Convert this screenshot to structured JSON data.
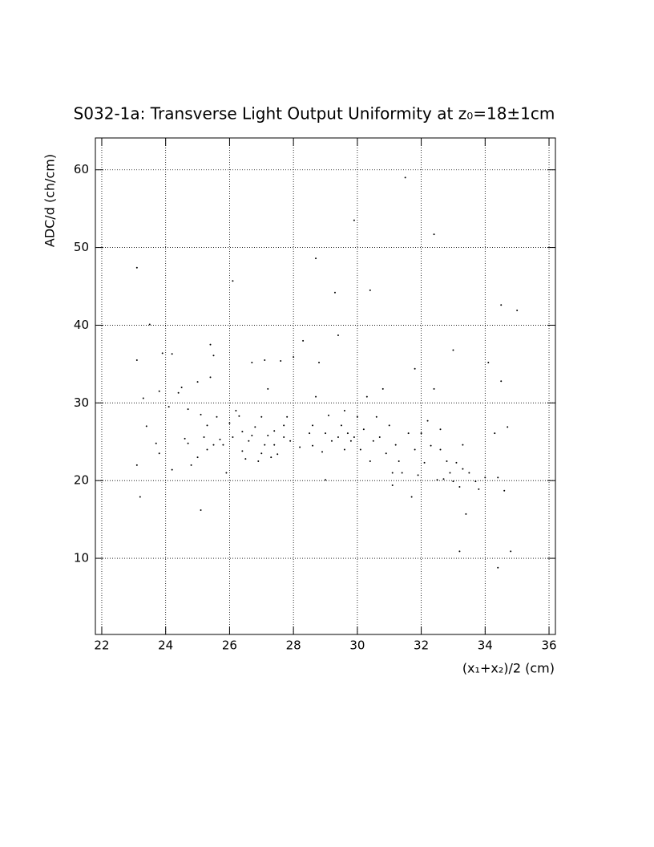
{
  "chart_data": {
    "type": "scatter",
    "title": "S032-1a: Transverse Light Output Uniformity at z₀=18±1cm",
    "x_label": "(x₁+x₂)/2 (cm)",
    "y_label": "ADC/d (ch/cm)",
    "color": "#000000",
    "grid": true,
    "xlim": [
      21.8,
      36.2
    ],
    "ylim": [
      0.2,
      64.1
    ],
    "xticks": [
      22,
      24,
      26,
      28,
      30,
      32,
      34,
      36
    ],
    "yticks": [
      10,
      20,
      30,
      40,
      50,
      60
    ],
    "x": [
      23.1,
      23.1,
      23.1,
      23.2,
      23.3,
      23.5,
      23.4,
      23.7,
      23.8,
      23.8,
      23.9,
      24.1,
      24.2,
      24.2,
      24.4,
      24.5,
      24.6,
      24.7,
      24.7,
      24.8,
      25.0,
      25.0,
      25.1,
      25.1,
      25.2,
      25.3,
      25.3,
      25.4,
      25.4,
      25.5,
      25.5,
      25.6,
      25.7,
      25.8,
      25.9,
      26.0,
      26.1,
      26.1,
      26.2,
      26.3,
      26.4,
      26.4,
      26.5,
      26.6,
      26.7,
      26.7,
      26.8,
      26.9,
      27.0,
      27.0,
      27.1,
      27.1,
      27.2,
      27.2,
      27.3,
      27.4,
      27.4,
      27.5,
      27.6,
      27.7,
      27.7,
      27.8,
      27.9,
      28.0,
      28.2,
      28.3,
      28.5,
      28.6,
      28.6,
      28.7,
      28.7,
      28.8,
      28.9,
      29.0,
      29.0,
      29.1,
      29.2,
      29.3,
      29.4,
      29.4,
      29.5,
      29.6,
      29.6,
      29.7,
      29.8,
      29.9,
      29.9,
      30.0,
      30.1,
      30.2,
      30.3,
      30.4,
      30.4,
      30.5,
      30.6,
      30.7,
      30.8,
      30.9,
      31.0,
      31.1,
      31.1,
      31.2,
      31.3,
      31.4,
      31.5,
      31.6,
      31.7,
      31.8,
      31.8,
      31.9,
      32.0,
      32.1,
      32.2,
      32.3,
      32.4,
      32.4,
      32.5,
      32.6,
      32.6,
      32.7,
      32.8,
      32.9,
      33.0,
      33.0,
      33.1,
      33.2,
      33.2,
      33.3,
      33.3,
      33.4,
      33.5,
      33.7,
      33.8,
      34.0,
      34.1,
      34.3,
      34.4,
      34.4,
      34.5,
      34.5,
      34.6,
      34.7,
      34.8,
      35.0
    ],
    "values": [
      47.4,
      35.5,
      22.0,
      17.9,
      30.6,
      40.1,
      27.0,
      24.8,
      23.5,
      31.5,
      36.4,
      29.5,
      21.4,
      36.3,
      31.3,
      32.0,
      25.4,
      24.8,
      29.2,
      22.0,
      32.7,
      23.0,
      28.5,
      16.2,
      25.6,
      24.0,
      27.1,
      33.3,
      37.5,
      36.1,
      24.6,
      28.2,
      25.3,
      24.6,
      21.0,
      27.4,
      45.7,
      25.6,
      29.0,
      28.3,
      26.3,
      23.8,
      22.8,
      25.1,
      25.8,
      35.2,
      26.9,
      22.5,
      28.2,
      23.5,
      35.5,
      24.6,
      31.8,
      25.8,
      23.0,
      24.6,
      26.4,
      23.4,
      35.4,
      27.1,
      25.6,
      28.2,
      25.1,
      35.9,
      24.3,
      38.0,
      26.1,
      27.1,
      24.5,
      48.6,
      30.8,
      35.2,
      23.7,
      20.1,
      26.1,
      28.4,
      25.1,
      44.2,
      25.6,
      38.7,
      27.1,
      24.0,
      29.0,
      26.1,
      25.1,
      25.6,
      53.5,
      28.2,
      24.0,
      26.6,
      30.8,
      22.5,
      44.5,
      25.1,
      28.2,
      25.6,
      31.8,
      23.5,
      27.1,
      21.0,
      19.4,
      24.6,
      22.5,
      21.0,
      59.0,
      26.1,
      17.9,
      34.4,
      24.0,
      20.7,
      26.1,
      22.3,
      27.7,
      24.5,
      51.7,
      31.8,
      20.1,
      26.6,
      24.0,
      20.2,
      22.5,
      21.0,
      36.8,
      19.9,
      22.3,
      19.2,
      10.9,
      21.5,
      24.6,
      15.7,
      21.0,
      19.9,
      18.9,
      20.4,
      35.2,
      26.1,
      8.8,
      20.4,
      32.8,
      42.6,
      18.7,
      26.9,
      10.9,
      41.9
    ]
  }
}
